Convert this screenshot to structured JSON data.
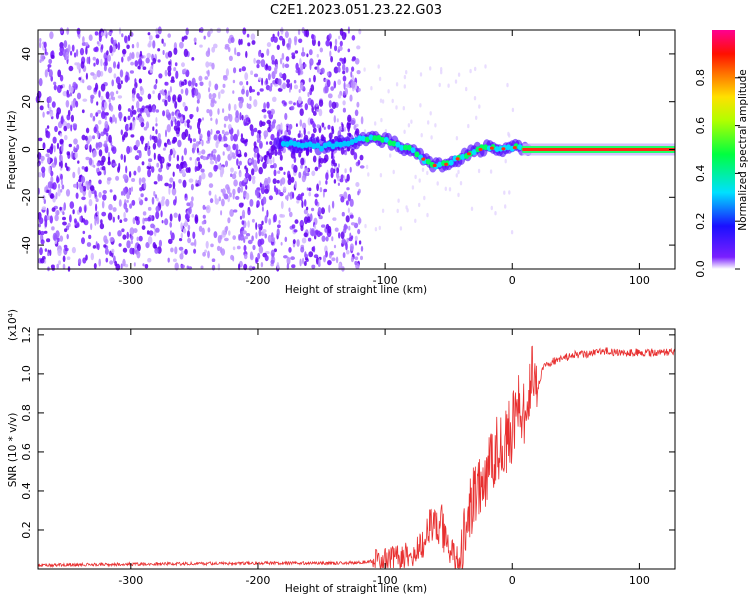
{
  "title": "C2E1.2023.051.23.22.G03",
  "chart_data": [
    {
      "type": "heatmap",
      "xlabel": "Height of straight line (km)",
      "ylabel": "Frequency (Hz)",
      "xlim": [
        -373,
        128
      ],
      "ylim": [
        -50,
        50
      ],
      "x_ticks": [
        "-300",
        "-200",
        "-100",
        "0",
        "100"
      ],
      "y_ticks": [
        "-40",
        "-20",
        "0",
        "20",
        "40"
      ],
      "colorbar": {
        "label": "Normalized spectral amplitude",
        "range": [
          0.0,
          1.0
        ],
        "ticks": [
          "0.0",
          "0.2",
          "0.4",
          "0.6",
          "0.8"
        ],
        "colormap": [
          "#ffffff",
          "#6a00ff",
          "#0000ff",
          "#00ffff",
          "#00ff00",
          "#ffff00",
          "#ff8000",
          "#ff0000",
          "#ff0080"
        ]
      },
      "ridge": {
        "x": [
          -180,
          -170,
          -160,
          -150,
          -140,
          -130,
          -120,
          -110,
          -100,
          -90,
          -80,
          -70,
          -60,
          -50,
          -40,
          -30,
          -20,
          -10,
          0,
          10,
          128
        ],
        "y": [
          3,
          2,
          2,
          1,
          2,
          3,
          4,
          5,
          4,
          2,
          0,
          -4,
          -7,
          -6,
          -3,
          -1,
          1,
          0,
          1,
          0,
          0
        ]
      }
    },
    {
      "type": "line",
      "xlabel": "Height of straight line (km)",
      "ylabel": "SNR (10 * v/v)",
      "y_multiplier": "(x10⁴)",
      "xlim": [
        -373,
        128
      ],
      "ylim": [
        0,
        1.23
      ],
      "x_ticks": [
        "-300",
        "-200",
        "-100",
        "0",
        "100"
      ],
      "y_ticks": [
        "0.2",
        "0.4",
        "0.6",
        "0.8",
        "1.0",
        "1.2"
      ],
      "color": "#e83030",
      "series": [
        {
          "x": [
            -373,
            -300,
            -200,
            -130,
            -110,
            -100,
            -90,
            -80,
            -70,
            -65,
            -60,
            -55,
            -50,
            -45,
            -40,
            -35,
            -30,
            -25,
            -20,
            -15,
            -10,
            -5,
            0,
            5,
            10,
            15,
            20,
            25,
            30,
            40,
            50,
            60,
            70,
            80,
            100,
            128
          ],
          "y": [
            0.02,
            0.025,
            0.03,
            0.03,
            0.04,
            0.05,
            0.06,
            0.08,
            0.12,
            0.2,
            0.26,
            0.22,
            0.1,
            0.06,
            0.05,
            0.28,
            0.38,
            0.4,
            0.45,
            0.58,
            0.62,
            0.66,
            0.72,
            0.9,
            0.78,
            1.0,
            0.92,
            1.05,
            1.06,
            1.08,
            1.1,
            1.1,
            1.12,
            1.11,
            1.11,
            1.11
          ]
        }
      ]
    }
  ]
}
